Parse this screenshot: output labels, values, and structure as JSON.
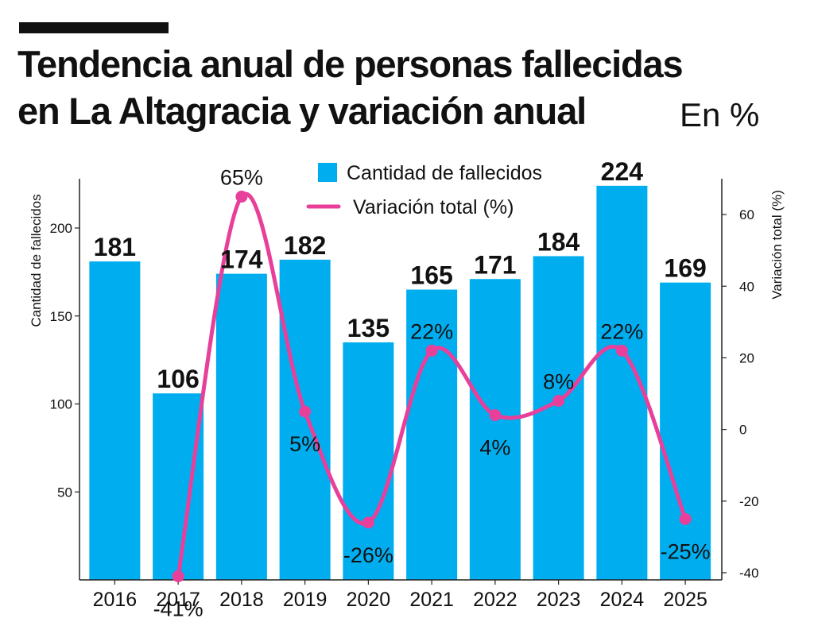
{
  "header": {
    "title_line1": "Tendencia anual de personas fallecidas",
    "title_line2": "en La Altagracia y variación anual",
    "unit": "En %"
  },
  "chart_data": {
    "type": "bar+line",
    "categories": [
      "2016",
      "2017",
      "2018",
      "2019",
      "2020",
      "2021",
      "2022",
      "2023",
      "2024",
      "2025"
    ],
    "series": [
      {
        "name": "Cantidad de fallecidos",
        "type": "bar",
        "axis": "left",
        "values": [
          181,
          106,
          174,
          182,
          135,
          165,
          171,
          184,
          224,
          169
        ],
        "labels": [
          "181",
          "106",
          "174",
          "182",
          "135",
          "165",
          "171",
          "184",
          "224",
          "169"
        ]
      },
      {
        "name": "Variación total (%)",
        "type": "line",
        "axis": "right",
        "values": [
          null,
          -41,
          65,
          5,
          -26,
          22,
          4,
          8,
          22,
          -25
        ],
        "labels": [
          null,
          "-41%",
          "65%",
          "5%",
          "-26%",
          "22%",
          "4%",
          "8%",
          "22%",
          "-25%"
        ]
      }
    ],
    "left_axis": {
      "label": "Cantidad de fallecidos",
      "range": [
        0,
        228
      ],
      "ticks": [
        50,
        100,
        150,
        200
      ]
    },
    "right_axis": {
      "label": "Variación total (%)",
      "range": [
        -42,
        70
      ],
      "ticks": [
        -40,
        -20,
        0,
        20,
        40,
        60
      ]
    },
    "legend": {
      "position": "top-center",
      "bar_label": "Cantidad de fallecidos",
      "line_label": "Variación total (%)"
    },
    "colors": {
      "bar": "#00aeef",
      "line": "#e8409a",
      "axis": "#222222",
      "text": "#111111"
    }
  }
}
